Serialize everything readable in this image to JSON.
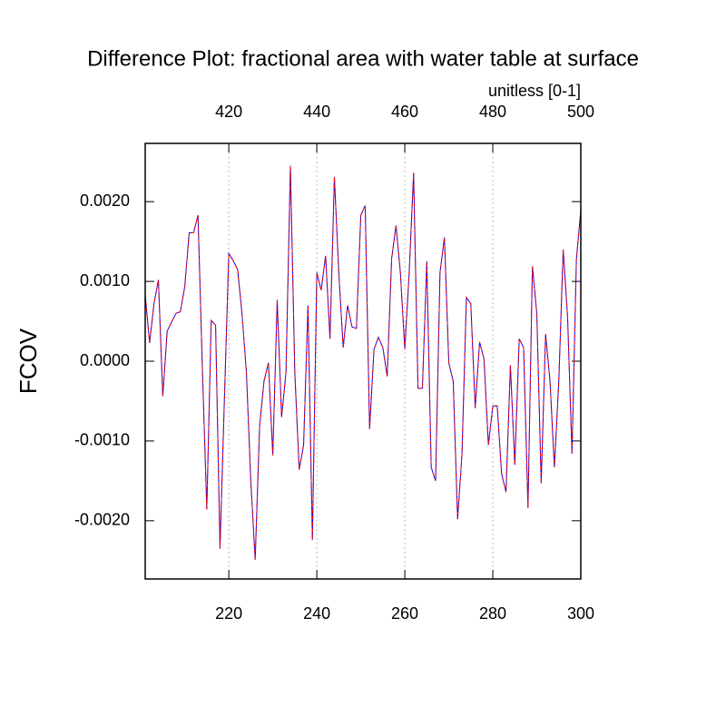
{
  "chart_data": {
    "type": "line",
    "title": "Difference Plot: fractional area with water table at surface",
    "subtitle": "unitless [0-1]",
    "y_label": "FCOV",
    "x": [
      201,
      202,
      203,
      204,
      205,
      206,
      207,
      208,
      209,
      210,
      211,
      212,
      213,
      214,
      215,
      216,
      217,
      218,
      219,
      220,
      221,
      222,
      223,
      224,
      225,
      226,
      227,
      228,
      229,
      230,
      231,
      232,
      233,
      234,
      235,
      236,
      237,
      238,
      239,
      240,
      241,
      242,
      243,
      244,
      245,
      246,
      247,
      248,
      249,
      250,
      251,
      252,
      253,
      254,
      255,
      256,
      257,
      258,
      259,
      260,
      261,
      262,
      263,
      264,
      265,
      266,
      267,
      268,
      269,
      270,
      271,
      272,
      273,
      274,
      275,
      276,
      277,
      278,
      279,
      280,
      281,
      282,
      283,
      284,
      285,
      286,
      287,
      288,
      289,
      290,
      291,
      292,
      293,
      294,
      295,
      296,
      297,
      298,
      299,
      300
    ],
    "series": [
      {
        "color": "#0000ff",
        "overlay_color": "#ff0000",
        "values": [
          0.00083,
          0.00023,
          0.00072,
          0.00102,
          -0.00044,
          0.00038,
          0.00049,
          0.0006,
          0.00062,
          0.00094,
          0.00161,
          0.00161,
          0.00183,
          -0.0001,
          -0.00186,
          0.00051,
          0.00045,
          -0.00235,
          -0.00048,
          0.00135,
          0.00126,
          0.00115,
          0.0006,
          -0.00014,
          -0.0015,
          -0.00249,
          -0.00082,
          -0.00025,
          -2e-05,
          -0.00118,
          0.00077,
          -0.0007,
          -0.00014,
          0.00245,
          -0.00014,
          -0.00136,
          -0.00105,
          0.0007,
          -0.00224,
          0.00111,
          0.00089,
          0.00132,
          0.00028,
          0.00231,
          0.00111,
          0.00017,
          0.0007,
          0.00043,
          0.00041,
          0.00183,
          0.00195,
          -0.00085,
          0.00015,
          0.0003,
          0.00017,
          -0.00019,
          0.00128,
          0.0017,
          0.00111,
          0.00015,
          0.00111,
          0.00236,
          -0.00034,
          -0.00034,
          0.00125,
          -0.00133,
          -0.0015,
          0.00111,
          0.00155,
          -2e-05,
          -0.00025,
          -0.00198,
          -0.00116,
          0.0008,
          0.00072,
          -0.00059,
          0.00024,
          3e-05,
          -0.00105,
          -0.00056,
          -0.00056,
          -0.00141,
          -0.00164,
          -5e-05,
          -0.0013,
          0.00028,
          0.00017,
          -0.00184,
          0.00119,
          0.0006,
          -0.00153,
          0.00034,
          -0.00025,
          -0.00133,
          -0.00025,
          0.0014,
          0.00055,
          -0.00116,
          0.00128,
          0.00189
        ]
      }
    ],
    "xlim": [
      201,
      300
    ],
    "xticks": [
      220,
      240,
      260,
      280,
      300
    ],
    "xtick_color": "#ff0000",
    "x2lim": [
      401,
      500
    ],
    "x2ticks": [
      420,
      440,
      460,
      480,
      500
    ],
    "x2tick_color": "#0000ff",
    "ylim": [
      -0.00273,
      0.00273
    ],
    "yticks": [
      {
        "value": -0.002,
        "label": "-0.0020"
      },
      {
        "value": -0.001,
        "label": "-0.0010"
      },
      {
        "value": 0,
        "label": "0.0000"
      },
      {
        "value": 0.001,
        "label": "0.0010"
      },
      {
        "value": 0.002,
        "label": "0.0020"
      }
    ],
    "grid": true
  }
}
